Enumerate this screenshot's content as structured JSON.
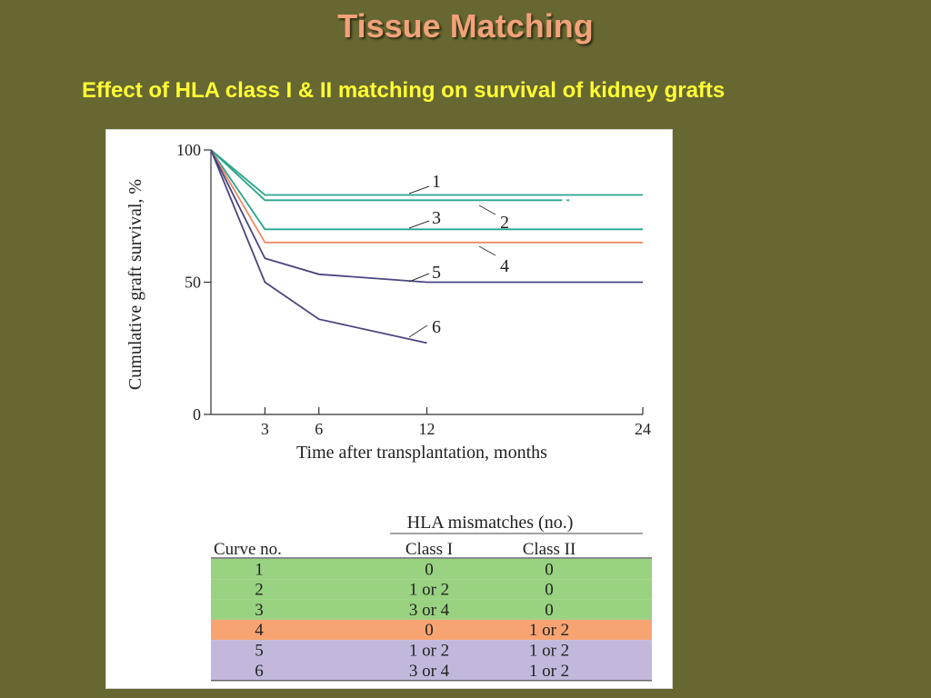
{
  "slide": {
    "title": "Tissue Matching",
    "subtitle": "Effect of HLA class I & II matching on survival of kidney grafts"
  },
  "chart_data": {
    "type": "line",
    "xlabel": "Time after transplantation, months",
    "ylabel": "Cumulative graft survival, %",
    "xlim": [
      0,
      24
    ],
    "ylim": [
      0,
      100
    ],
    "x_ticks": [
      3,
      6,
      12,
      24
    ],
    "y_ticks": [
      0,
      50,
      100
    ],
    "grid": false,
    "series": [
      {
        "name": "1",
        "color": "#2aa58a",
        "points": [
          [
            0,
            100
          ],
          [
            3,
            83
          ],
          [
            24,
            83
          ]
        ]
      },
      {
        "name": "2",
        "color": "#2aa58a",
        "dashed_start": true,
        "points": [
          [
            0,
            100
          ],
          [
            3,
            81
          ],
          [
            24,
            81
          ]
        ]
      },
      {
        "name": "3",
        "color": "#2aa58a",
        "points": [
          [
            0,
            100
          ],
          [
            3,
            70
          ],
          [
            24,
            70
          ]
        ]
      },
      {
        "name": "4",
        "color": "#ee8a66",
        "points": [
          [
            0,
            100
          ],
          [
            3,
            65
          ],
          [
            24,
            65
          ]
        ]
      },
      {
        "name": "5",
        "color": "#4a4680",
        "points": [
          [
            0,
            100
          ],
          [
            3,
            59
          ],
          [
            6,
            53
          ],
          [
            12,
            50
          ],
          [
            24,
            50
          ]
        ]
      },
      {
        "name": "6",
        "color": "#4a4680",
        "points": [
          [
            0,
            100
          ],
          [
            3,
            50
          ],
          [
            6,
            36
          ],
          [
            12,
            27
          ]
        ]
      }
    ]
  },
  "table": {
    "group_header": "HLA mismatches (no.)",
    "headers": [
      "Curve no.",
      "Class I",
      "Class II"
    ],
    "row_colors": [
      "#99d280",
      "#99d280",
      "#99d280",
      "#f7a472",
      "#c3b8dc",
      "#c3b8dc"
    ],
    "rows": [
      [
        "1",
        "0",
        "0"
      ],
      [
        "2",
        "1 or 2",
        "0"
      ],
      [
        "3",
        "3 or 4",
        "0"
      ],
      [
        "4",
        "0",
        "1 or 2"
      ],
      [
        "5",
        "1 or 2",
        "1 or 2"
      ],
      [
        "6",
        "3 or 4",
        "1 or 2"
      ]
    ]
  }
}
